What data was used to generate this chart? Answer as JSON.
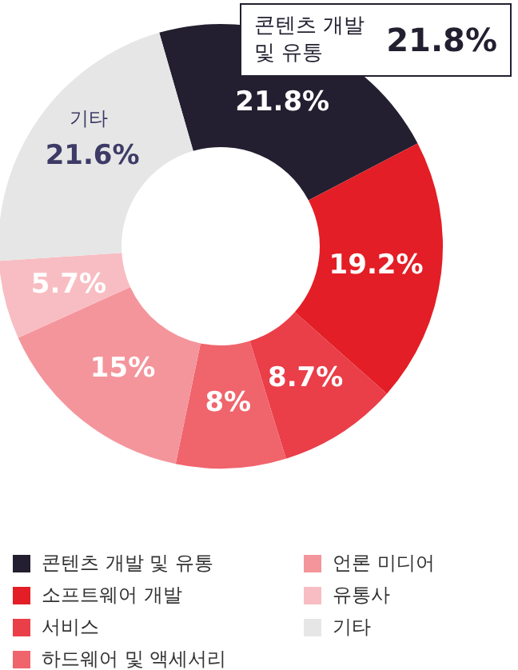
{
  "chart_data": {
    "type": "donut",
    "categories": [
      "콘텐츠 개발 및 유통",
      "소프트웨어 개발",
      "서비스",
      "하드웨어 및 액세서리",
      "언론 미디어",
      "유통사",
      "기타"
    ],
    "values": [
      21.8,
      19.2,
      8.7,
      8,
      15,
      5.7,
      21.6
    ],
    "colors": [
      "#231f30",
      "#e31e26",
      "#ea3e48",
      "#f0646c",
      "#f4959c",
      "#f8bdc2",
      "#e6e6e6"
    ],
    "value_labels": [
      "21.8%",
      "19.2%",
      "8.7%",
      "8%",
      "15%",
      "5.7%",
      "21.6%"
    ],
    "annotations": [
      "콘텐츠 개발 및 유통",
      "21.8%",
      {
        "text": "기타",
        "x": "기타"
      }
    ],
    "legend": "bottom"
  }
}
